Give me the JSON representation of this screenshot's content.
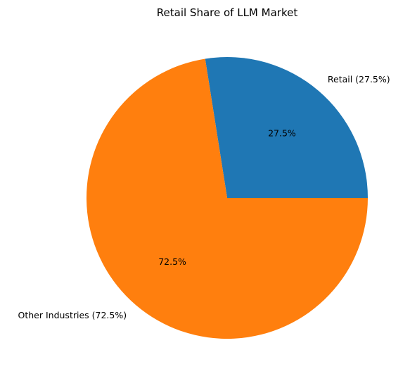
{
  "chart_data": {
    "type": "pie",
    "title": "Retail Share of LLM Market",
    "slices": [
      {
        "label": "Retail (27.5%)",
        "value": 27.5,
        "pct_label": "27.5%",
        "color": "#1f77b4"
      },
      {
        "label": "Other Industries (72.5%)",
        "value": 72.5,
        "pct_label": "72.5%",
        "color": "#ff7f0e"
      }
    ],
    "start_angle": 0,
    "direction": "counterclockwise"
  }
}
